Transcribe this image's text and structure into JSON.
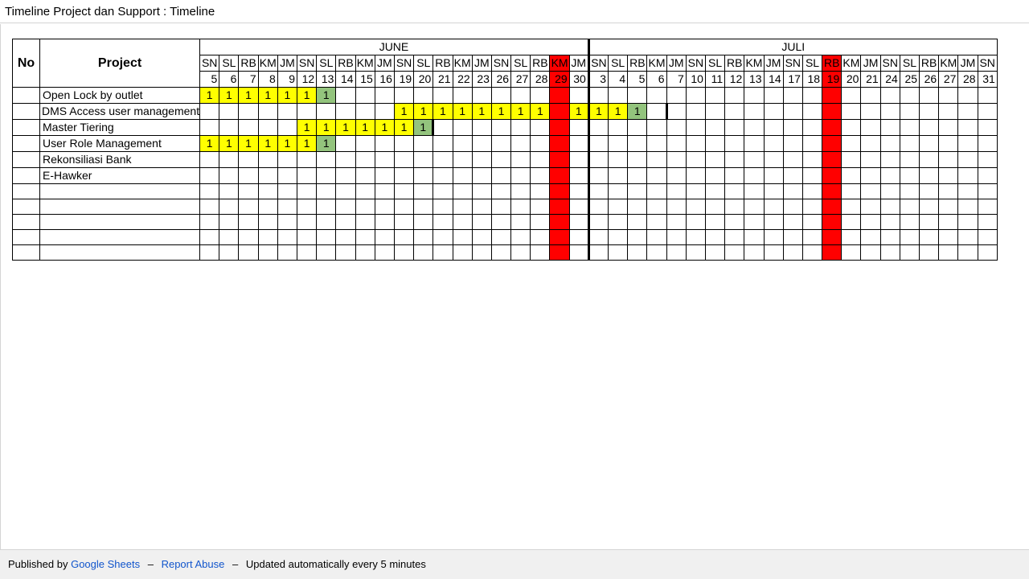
{
  "header": {
    "title": "Timeline Project dan Support : Timeline"
  },
  "table": {
    "col_no": "No",
    "col_project": "Project",
    "months": [
      {
        "label": "JUNE",
        "span": 20
      },
      {
        "label": "JULI",
        "span": 21
      }
    ],
    "days": [
      "SN",
      "SL",
      "RB",
      "KM",
      "JM",
      "SN",
      "SL",
      "RB",
      "KM",
      "JM",
      "SN",
      "SL",
      "RB",
      "KM",
      "JM",
      "SN",
      "SL",
      "RB",
      "KM",
      "JM",
      "SN",
      "SL",
      "RB",
      "KM",
      "JM",
      "SN",
      "SL",
      "RB",
      "KM",
      "JM",
      "SN",
      "SL",
      "RB",
      "KM",
      "JM",
      "SN",
      "SL",
      "RB",
      "KM",
      "JM",
      "SN"
    ],
    "dates": [
      "5",
      "6",
      "7",
      "8",
      "9",
      "12",
      "13",
      "14",
      "15",
      "16",
      "19",
      "20",
      "21",
      "22",
      "23",
      "26",
      "27",
      "28",
      "29",
      "30",
      "3",
      "4",
      "5",
      "6",
      "7",
      "10",
      "11",
      "12",
      "13",
      "14",
      "17",
      "18",
      "19",
      "20",
      "21",
      "24",
      "25",
      "26",
      "27",
      "28",
      "31"
    ],
    "holiday_columns": [
      18,
      32
    ],
    "projects": [
      {
        "name": "Open Lock by outlet",
        "start": 0,
        "values": [
          "1",
          "1",
          "1",
          "1",
          "1",
          "1",
          "1"
        ],
        "complete_index": 6,
        "endmark": null
      },
      {
        "name": "DMS Access user management",
        "start": 10,
        "values": [
          "1",
          "1",
          "1",
          "1",
          "1",
          "1",
          "1",
          "1",
          "",
          "1",
          "1",
          "1",
          "1"
        ],
        "complete_index": 12,
        "endmark": 23
      },
      {
        "name": "Master Tiering",
        "start": 5,
        "values": [
          "1",
          "1",
          "1",
          "1",
          "1",
          "1",
          "1"
        ],
        "complete_index": 6,
        "endmark": 11
      },
      {
        "name": "User Role Management",
        "start": 0,
        "values": [
          "1",
          "1",
          "1",
          "1",
          "1",
          "1",
          "1"
        ],
        "complete_index": 6,
        "endmark": null
      },
      {
        "name": "Rekonsiliasi Bank",
        "start": 0,
        "values": [],
        "complete_index": null,
        "endmark": null
      },
      {
        "name": "E-Hawker",
        "start": 0,
        "values": [],
        "complete_index": null,
        "endmark": null
      },
      {
        "name": "",
        "start": 0,
        "values": [],
        "complete_index": null,
        "endmark": null
      },
      {
        "name": "",
        "start": 0,
        "values": [],
        "complete_index": null,
        "endmark": null
      },
      {
        "name": "",
        "start": 0,
        "values": [],
        "complete_index": null,
        "endmark": null
      },
      {
        "name": "",
        "start": 0,
        "values": [],
        "complete_index": null,
        "endmark": null
      },
      {
        "name": "",
        "start": 0,
        "values": [],
        "complete_index": null,
        "endmark": null
      }
    ],
    "colors": {
      "in_progress": "#ffff00",
      "complete": "#93c47d",
      "holiday": "#ff0000"
    }
  },
  "footer": {
    "published_by": "Published by",
    "google_sheets": "Google Sheets",
    "dash1": "–",
    "report_abuse": "Report Abuse",
    "dash2": "–",
    "updated": "Updated automatically every 5 minutes"
  }
}
